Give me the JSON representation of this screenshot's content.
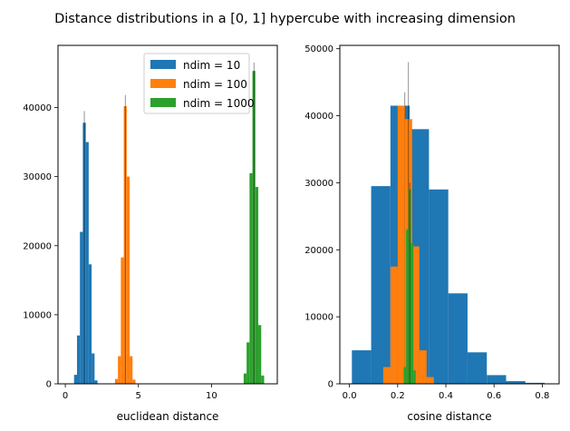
{
  "suptitle": "Distance distributions in a [0, 1] hypercube with increasing dimension",
  "colors": {
    "ndim10": "#1f77b4",
    "ndim100": "#ff7f0e",
    "ndim1000": "#2ca02c",
    "spine": "#000000",
    "legend_border": "#cccccc"
  },
  "chart_data": [
    {
      "type": "bar",
      "subtype": "histogram",
      "xlabel": "euclidean distance",
      "ylabel": "",
      "xlim": [
        -0.5,
        14.5
      ],
      "ylim": [
        0,
        49000
      ],
      "xticks": [
        0,
        5,
        10
      ],
      "yticks": [
        0,
        10000,
        20000,
        30000,
        40000
      ],
      "legend": {
        "position": "upper right",
        "entries": [
          "ndim = 10",
          "ndim = 100",
          "ndim = 1000"
        ]
      },
      "series": [
        {
          "name": "ndim = 10",
          "color_key": "ndim10",
          "bin_edges": [
            0.6,
            0.8,
            1.0,
            1.2,
            1.4,
            1.6,
            1.8,
            2.0,
            2.2
          ],
          "counts": [
            1300,
            7000,
            22000,
            37800,
            35000,
            17300,
            4400,
            500
          ],
          "peak_spike": {
            "x": 1.3,
            "value": 39500
          }
        },
        {
          "name": "ndim = 100",
          "color_key": "ndim100",
          "bin_edges": [
            3.4,
            3.6,
            3.8,
            4.0,
            4.2,
            4.4,
            4.6,
            4.8
          ],
          "counts": [
            700,
            4000,
            18300,
            40200,
            30000,
            4000,
            600
          ],
          "peak_spike": {
            "x": 4.1,
            "value": 41800
          }
        },
        {
          "name": "ndim = 1000",
          "color_key": "ndim1000",
          "bin_edges": [
            12.2,
            12.4,
            12.6,
            12.8,
            13.0,
            13.2,
            13.4,
            13.6
          ],
          "counts": [
            1500,
            6000,
            30500,
            45300,
            28500,
            8500,
            1200
          ],
          "peak_spike": {
            "x": 12.9,
            "value": 46500
          }
        }
      ]
    },
    {
      "type": "bar",
      "subtype": "histogram",
      "xlabel": "cosine distance",
      "ylabel": "",
      "xlim": [
        -0.04,
        0.87
      ],
      "ylim": [
        0,
        50500
      ],
      "xticks": [
        0.0,
        0.2,
        0.4,
        0.6,
        0.8
      ],
      "yticks": [
        0,
        10000,
        20000,
        30000,
        40000,
        50000
      ],
      "series": [
        {
          "name": "ndim = 10",
          "color_key": "ndim10",
          "bin_edges": [
            0.01,
            0.09,
            0.17,
            0.25,
            0.33,
            0.41,
            0.49,
            0.57,
            0.65,
            0.73,
            0.81
          ],
          "counts": [
            5000,
            29500,
            41500,
            38000,
            29000,
            13500,
            4700,
            1300,
            400,
            150
          ],
          "peak_spike": {
            "x": 0.23,
            "value": 43500
          }
        },
        {
          "name": "ndim = 100",
          "color_key": "ndim100",
          "bin_edges": [
            0.14,
            0.17,
            0.2,
            0.23,
            0.26,
            0.29,
            0.32,
            0.35
          ],
          "counts": [
            2500,
            17500,
            41500,
            39500,
            20500,
            5000,
            1000
          ],
          "peak_spike": {
            "x": 0.245,
            "value": 48000
          }
        },
        {
          "name": "ndim = 1000",
          "color_key": "ndim1000",
          "bin_edges": [
            0.225,
            0.235,
            0.245,
            0.255,
            0.265,
            0.275
          ],
          "counts": [
            2500,
            23000,
            29000,
            21000,
            2000
          ],
          "peak_spike": {
            "x": 0.25,
            "value": 30000
          }
        }
      ]
    }
  ]
}
